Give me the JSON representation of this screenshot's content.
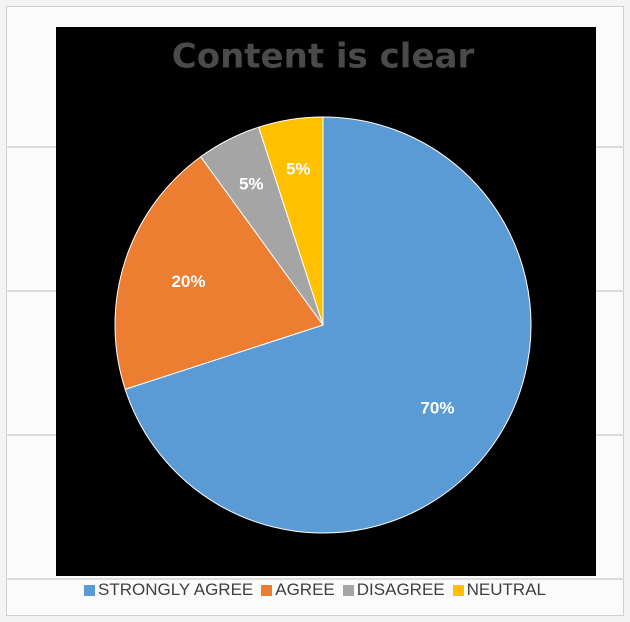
{
  "chart_data": {
    "type": "pie",
    "title": "Content is clear",
    "slices": [
      {
        "label": "STRONGLY AGREE",
        "value": 70,
        "display": "70%",
        "color": "#5b9bd5"
      },
      {
        "label": "AGREE",
        "value": 20,
        "display": "20%",
        "color": "#ed7d31"
      },
      {
        "label": "DISAGREE",
        "value": 5,
        "display": "5%",
        "color": "#a5a5a5"
      },
      {
        "label": "NEUTRAL",
        "value": 5,
        "display": "5%",
        "color": "#ffc000"
      }
    ],
    "legend_position": "bottom",
    "background": "#000000"
  }
}
